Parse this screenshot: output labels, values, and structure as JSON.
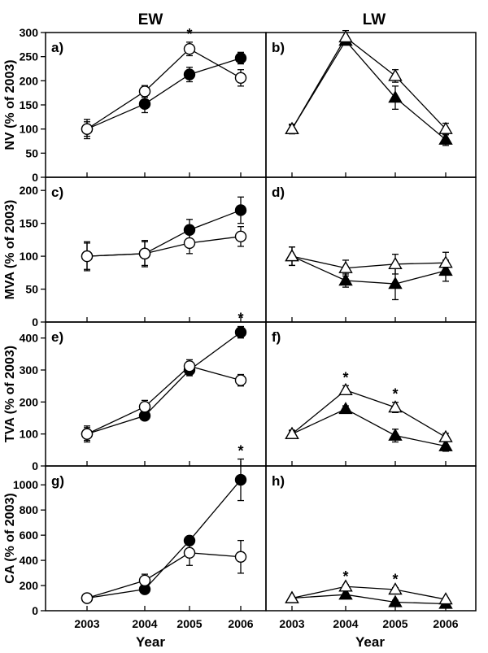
{
  "figure": {
    "col_titles": [
      "EW",
      "LW"
    ],
    "x_title": "Year",
    "x_ticks": [
      "2003",
      "2004",
      "2005",
      "2006"
    ]
  },
  "chart_data": [
    {
      "type": "line",
      "panel": "a)",
      "ylabel": "NV (% of 2003)",
      "ylim": [
        0,
        300
      ],
      "yticks": [
        0,
        50,
        100,
        150,
        200,
        250,
        300
      ],
      "categories": [
        "2003",
        "2004",
        "2005",
        "2006"
      ],
      "series": [
        {
          "marker": "filled-circle",
          "values": [
            100,
            152,
            213,
            247
          ],
          "err": [
            15,
            18,
            15,
            12
          ]
        },
        {
          "marker": "open-circle",
          "values": [
            100,
            178,
            266,
            206
          ],
          "err": [
            20,
            12,
            14,
            17
          ]
        }
      ],
      "stars": [
        "2005"
      ]
    },
    {
      "type": "line",
      "panel": "b)",
      "ylabel": "",
      "ylim": [
        0,
        300
      ],
      "yticks": [
        0,
        50,
        100,
        150,
        200,
        250,
        300
      ],
      "categories": [
        "2003",
        "2004",
        "2005",
        "2006"
      ],
      "series": [
        {
          "marker": "filled-triangle",
          "values": [
            100,
            283,
            165,
            78
          ],
          "err": [
            8,
            8,
            24,
            12
          ]
        },
        {
          "marker": "open-triangle",
          "values": [
            100,
            290,
            210,
            100
          ],
          "err": [
            10,
            14,
            13,
            12
          ]
        }
      ],
      "stars": []
    },
    {
      "type": "line",
      "panel": "c)",
      "ylabel": "MVA (% of 2003)",
      "ylim": [
        0,
        220
      ],
      "yticks": [
        0,
        50,
        100,
        150,
        200
      ],
      "categories": [
        "2003",
        "2004",
        "2005",
        "2006"
      ],
      "series": [
        {
          "marker": "filled-circle",
          "values": [
            100,
            104,
            140,
            170
          ],
          "err": [
            20,
            18,
            16,
            20
          ]
        },
        {
          "marker": "open-circle",
          "values": [
            100,
            104,
            120,
            130
          ],
          "err": [
            22,
            20,
            16,
            15
          ]
        }
      ],
      "stars": []
    },
    {
      "type": "line",
      "panel": "d)",
      "ylabel": "",
      "ylim": [
        0,
        220
      ],
      "yticks": [
        0,
        50,
        100,
        150,
        200
      ],
      "categories": [
        "2003",
        "2004",
        "2005",
        "2006"
      ],
      "series": [
        {
          "marker": "filled-triangle",
          "values": [
            100,
            63,
            58,
            78
          ],
          "err": [
            14,
            10,
            24,
            16
          ]
        },
        {
          "marker": "open-triangle",
          "values": [
            100,
            82,
            88,
            90
          ],
          "err": [
            14,
            12,
            15,
            16
          ]
        }
      ],
      "stars": []
    },
    {
      "type": "line",
      "panel": "e)",
      "ylabel": "TVA (% of 2003)",
      "ylim": [
        0,
        450
      ],
      "yticks": [
        0,
        100,
        200,
        300,
        400
      ],
      "categories": [
        "2003",
        "2004",
        "2005",
        "2006"
      ],
      "series": [
        {
          "marker": "filled-circle",
          "values": [
            100,
            157,
            300,
            418
          ],
          "err": [
            20,
            12,
            18,
            18
          ]
        },
        {
          "marker": "open-circle",
          "values": [
            100,
            185,
            312,
            268
          ],
          "err": [
            25,
            20,
            20,
            18
          ]
        }
      ],
      "stars": [
        "2006"
      ]
    },
    {
      "type": "line",
      "panel": "f)",
      "ylabel": "",
      "ylim": [
        0,
        450
      ],
      "yticks": [
        0,
        100,
        200,
        300,
        400
      ],
      "categories": [
        "2003",
        "2004",
        "2005",
        "2006"
      ],
      "series": [
        {
          "marker": "filled-triangle",
          "values": [
            100,
            178,
            95,
            62
          ],
          "err": [
            10,
            10,
            20,
            16
          ]
        },
        {
          "marker": "open-triangle",
          "values": [
            100,
            237,
            183,
            90
          ],
          "err": [
            12,
            14,
            16,
            12
          ]
        }
      ],
      "stars": [
        "2004",
        "2005"
      ]
    },
    {
      "type": "line",
      "panel": "g)",
      "ylabel": "CA (% of 2003)",
      "ylim": [
        0,
        1150
      ],
      "yticks": [
        0,
        200,
        400,
        600,
        800,
        1000
      ],
      "categories": [
        "2003",
        "2004",
        "2005",
        "2006"
      ],
      "series": [
        {
          "marker": "filled-circle",
          "values": [
            100,
            170,
            557,
            1040
          ],
          "err": [
            25,
            25,
            30,
            165
          ]
        },
        {
          "marker": "open-circle",
          "values": [
            100,
            240,
            460,
            428
          ],
          "err": [
            30,
            50,
            100,
            130
          ]
        }
      ],
      "stars": [
        "2006"
      ]
    },
    {
      "type": "line",
      "panel": "h)",
      "ylabel": "",
      "ylim": [
        0,
        1150
      ],
      "yticks": [
        0,
        200,
        400,
        600,
        800,
        1000
      ],
      "categories": [
        "2003",
        "2004",
        "2005",
        "2006"
      ],
      "series": [
        {
          "marker": "filled-triangle",
          "values": [
            100,
            128,
            68,
            55
          ],
          "err": [
            10,
            12,
            15,
            10
          ]
        },
        {
          "marker": "open-triangle",
          "values": [
            100,
            192,
            168,
            90
          ],
          "err": [
            10,
            15,
            15,
            12
          ]
        }
      ],
      "stars": [
        "2004",
        "2005"
      ]
    }
  ]
}
